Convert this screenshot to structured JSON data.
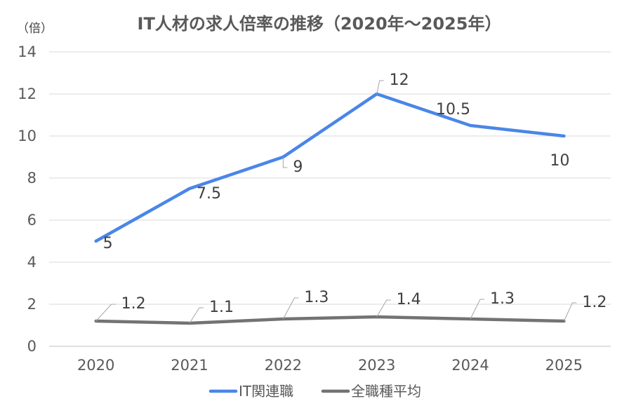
{
  "chart_data": {
    "type": "line",
    "title": "IT人材の求人倍率の推移（2020年～2025年）",
    "ylabel": "（倍）",
    "categories": [
      "2020",
      "2021",
      "2022",
      "2023",
      "2024",
      "2025"
    ],
    "series": [
      {
        "name": "IT関連職",
        "values": [
          5,
          7.5,
          9,
          12,
          10.5,
          10
        ],
        "labels": [
          "5",
          "7.5",
          "9",
          "12",
          "10.5",
          "10"
        ],
        "color": "#4a86e8"
      },
      {
        "name": "全職種平均",
        "values": [
          1.2,
          1.1,
          1.3,
          1.4,
          1.3,
          1.2
        ],
        "labels": [
          "1.2",
          "1.1",
          "1.3",
          "1.4",
          "1.3",
          "1.2"
        ],
        "color": "#737373"
      }
    ],
    "ylim": [
      0,
      14
    ],
    "yticks": [
      0,
      2,
      4,
      6,
      8,
      10,
      12,
      14
    ],
    "grid": true,
    "legend_position": "bottom"
  }
}
